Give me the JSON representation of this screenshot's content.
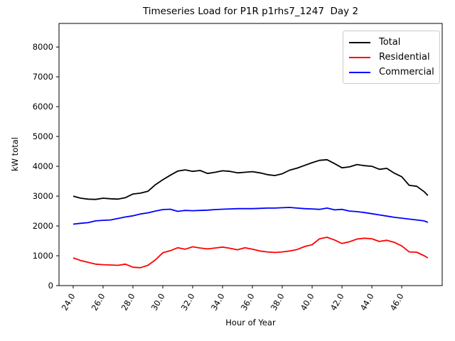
{
  "title": "Timeseries Load for P1R p1rhs7_1247  Day 2",
  "chart_data": {
    "type": "line",
    "title": "Timeseries Load for P1R p1rhs7_1247  Day 2",
    "xlabel": "Hour of Year",
    "ylabel": "kW total",
    "xlim": [
      23.05,
      48.71
    ],
    "ylim": [
      0,
      8790
    ],
    "grid": false,
    "legend_position": "upper right",
    "xticks": {
      "values": [
        24,
        26,
        28,
        30,
        32,
        34,
        36,
        38,
        40,
        42,
        44,
        46
      ],
      "labels": [
        "24.0",
        "26.0",
        "28.0",
        "30.0",
        "32.0",
        "34.0",
        "36.0",
        "38.0",
        "40.0",
        "42.0",
        "44.0",
        "46.0"
      ],
      "rotation_deg": 60
    },
    "yticks": {
      "values": [
        0,
        1000,
        2000,
        3000,
        4000,
        5000,
        6000,
        7000,
        8000
      ],
      "labels": [
        "0",
        "1000",
        "2000",
        "3000",
        "4000",
        "5000",
        "6000",
        "7000",
        "8000"
      ]
    },
    "x": [
      24.0,
      24.5,
      25.0,
      25.5,
      26.0,
      26.5,
      27.0,
      27.5,
      28.0,
      28.5,
      29.0,
      29.5,
      30.0,
      30.5,
      31.0,
      31.5,
      32.0,
      32.5,
      33.0,
      33.5,
      34.0,
      34.5,
      35.0,
      35.5,
      36.0,
      36.5,
      37.0,
      37.5,
      38.0,
      38.5,
      39.0,
      39.5,
      40.0,
      40.5,
      41.0,
      41.5,
      42.0,
      42.5,
      43.0,
      43.5,
      44.0,
      44.5,
      45.0,
      45.5,
      46.0,
      46.5,
      47.0,
      47.5,
      47.75
    ],
    "series": [
      {
        "name": "Total",
        "color": "#000000",
        "values": [
          3000,
          2930,
          2900,
          2890,
          2930,
          2910,
          2900,
          2950,
          3070,
          3100,
          3160,
          3380,
          3550,
          3700,
          3840,
          3880,
          3830,
          3860,
          3760,
          3800,
          3850,
          3830,
          3780,
          3800,
          3820,
          3780,
          3720,
          3690,
          3750,
          3870,
          3940,
          4030,
          4120,
          4200,
          4220,
          4090,
          3950,
          3980,
          4060,
          4020,
          4000,
          3900,
          3930,
          3770,
          3650,
          3360,
          3330,
          3150,
          3020
        ]
      },
      {
        "name": "Residential",
        "color": "#ff0000",
        "values": [
          930,
          840,
          780,
          720,
          700,
          690,
          680,
          720,
          615,
          600,
          680,
          860,
          1100,
          1170,
          1270,
          1220,
          1300,
          1260,
          1230,
          1260,
          1290,
          1250,
          1200,
          1270,
          1220,
          1160,
          1130,
          1110,
          1130,
          1160,
          1210,
          1310,
          1370,
          1570,
          1620,
          1530,
          1410,
          1470,
          1560,
          1590,
          1570,
          1480,
          1520,
          1450,
          1330,
          1130,
          1120,
          1000,
          930
        ]
      },
      {
        "name": "Commercial",
        "color": "#0000ff",
        "values": [
          2060,
          2090,
          2110,
          2170,
          2190,
          2200,
          2250,
          2300,
          2340,
          2400,
          2440,
          2500,
          2550,
          2560,
          2490,
          2520,
          2510,
          2520,
          2530,
          2550,
          2560,
          2570,
          2580,
          2580,
          2580,
          2590,
          2600,
          2600,
          2610,
          2620,
          2600,
          2580,
          2570,
          2555,
          2600,
          2540,
          2555,
          2500,
          2480,
          2450,
          2410,
          2370,
          2330,
          2290,
          2260,
          2230,
          2200,
          2170,
          2120
        ]
      }
    ]
  }
}
